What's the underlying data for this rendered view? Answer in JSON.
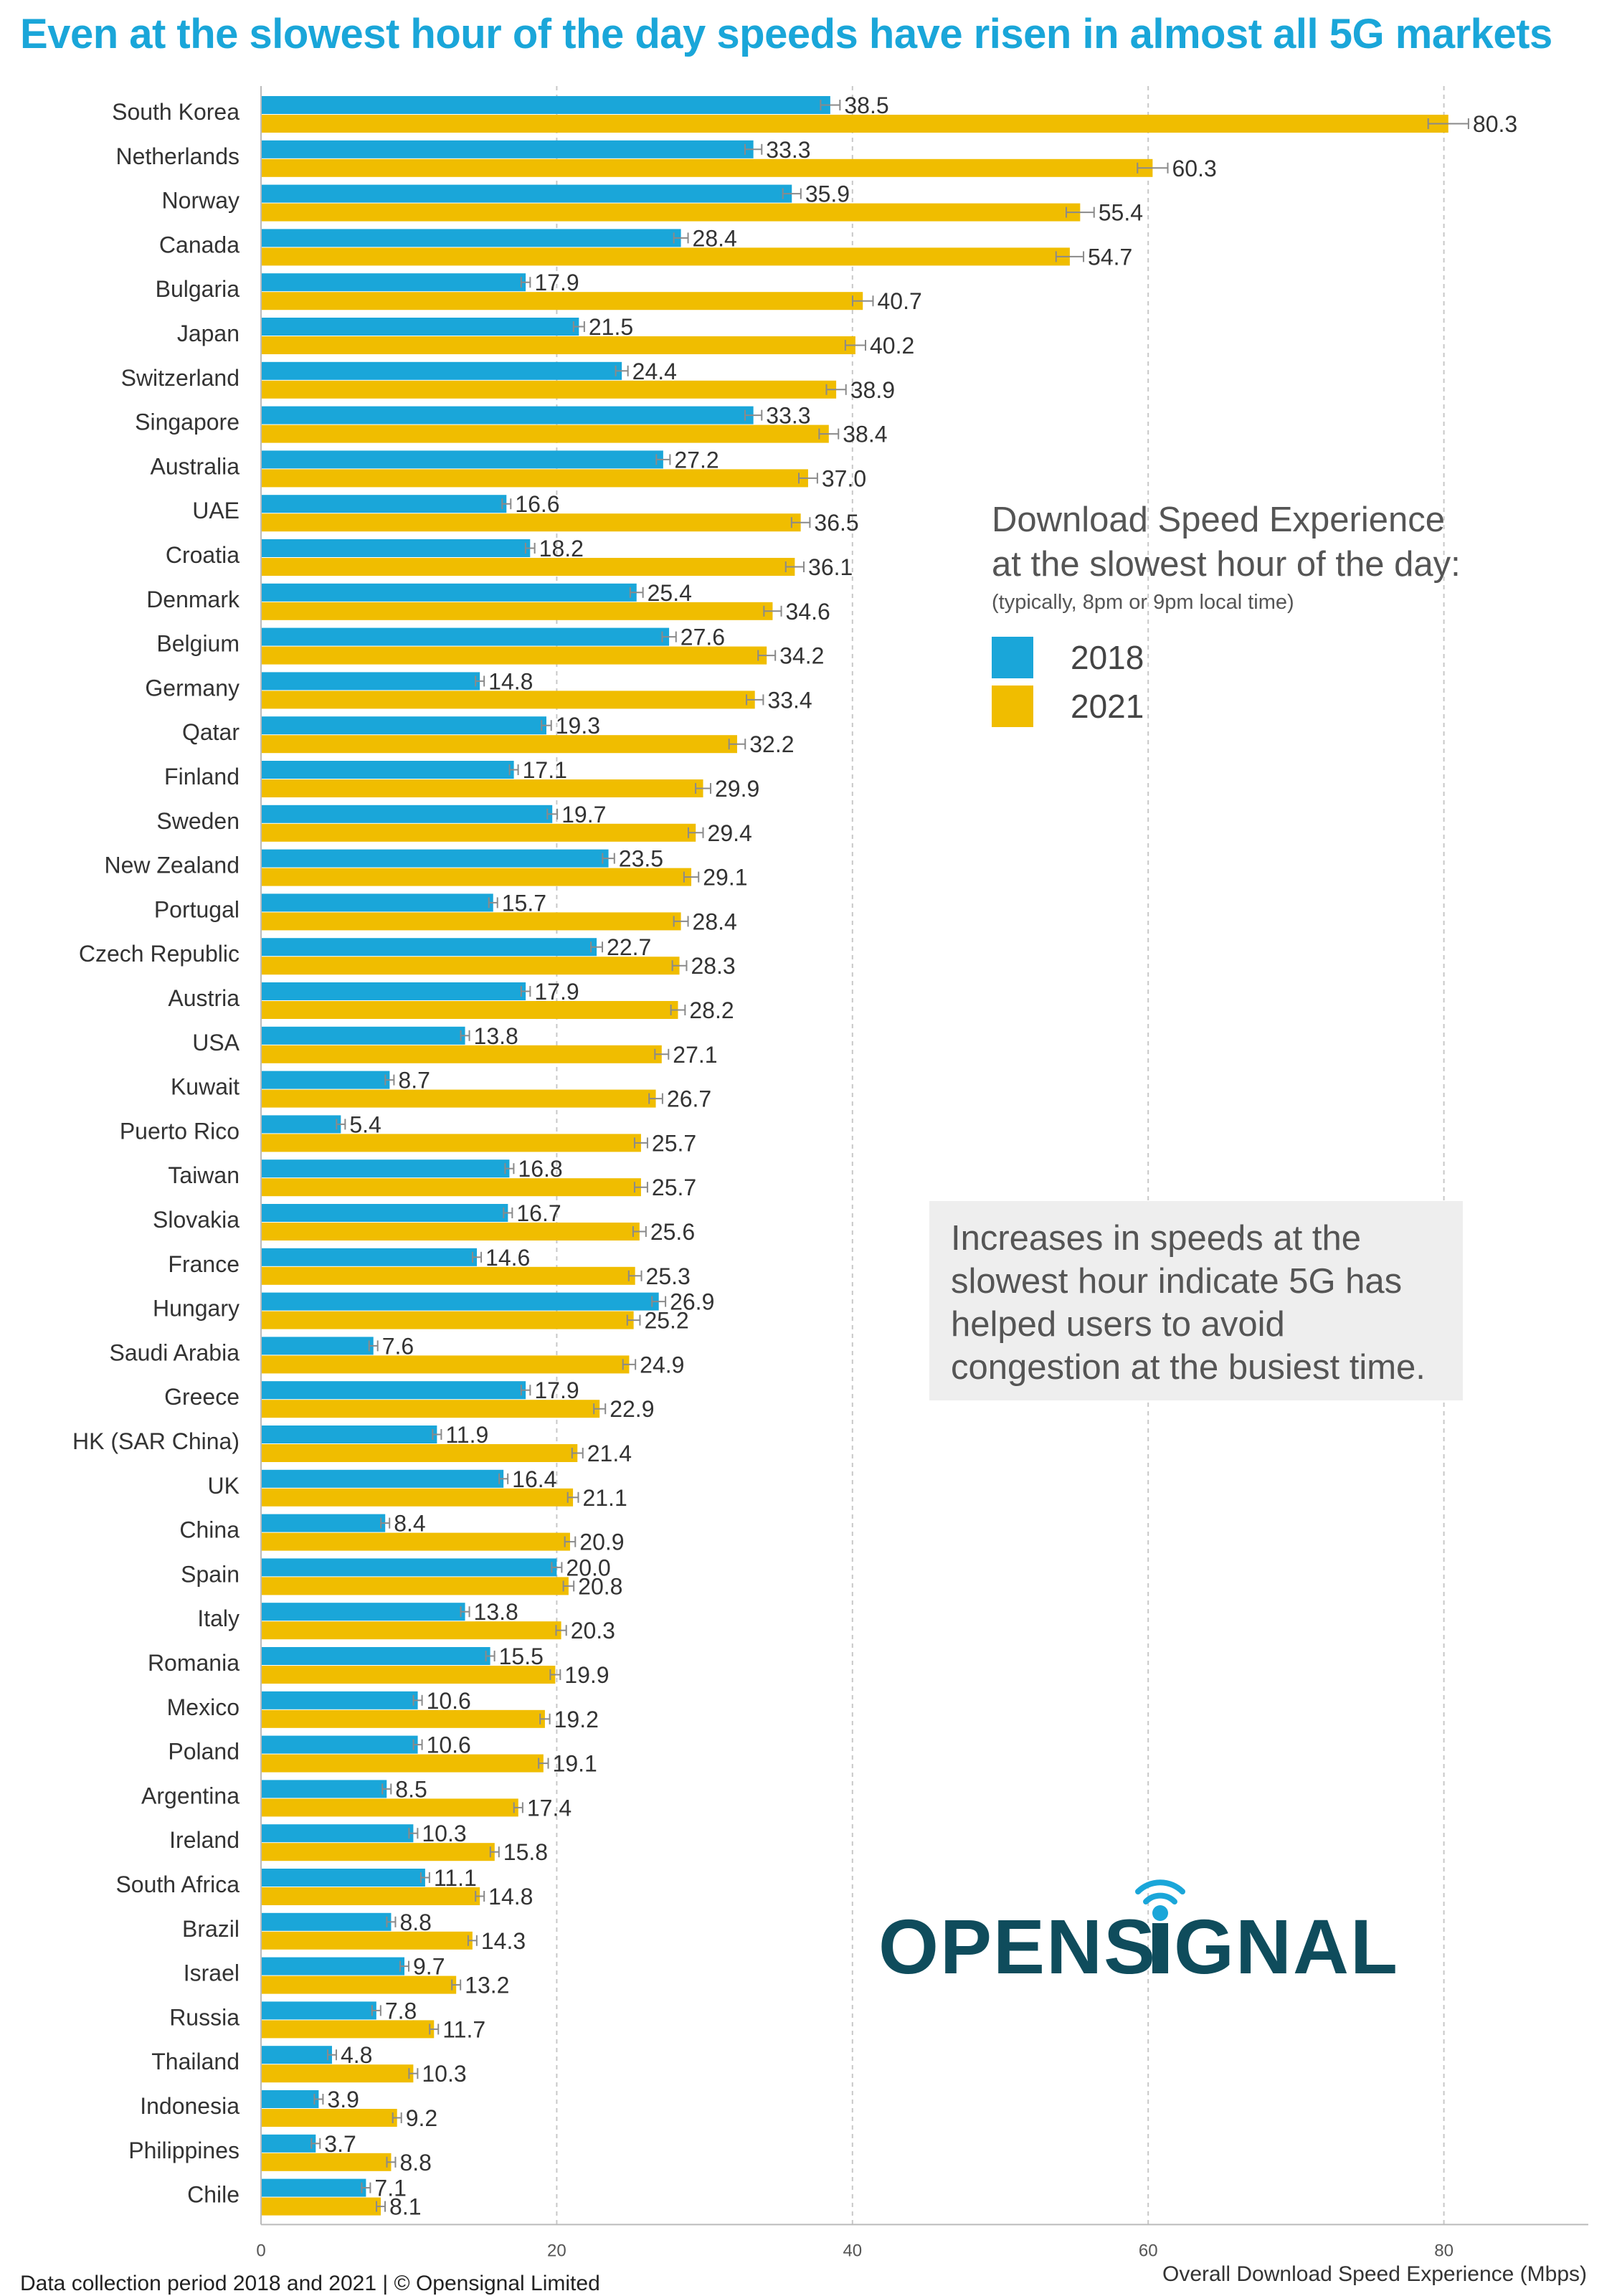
{
  "title": "Even at the slowest hour of the day speeds have risen in almost all 5G markets",
  "legend": {
    "title": "Download Speed Experience\nat the slowest hour of the day:",
    "subtitle": "(typically, 8pm or 9pm local time)",
    "items": [
      {
        "label": "2018",
        "color": "#1aa6d9"
      },
      {
        "label": "2021",
        "color": "#f0bd00"
      }
    ]
  },
  "note": "Increases in speeds at the slowest hour indicate 5G has helped users to avoid congestion at the busiest time.",
  "logo": {
    "text": "OPENSIGNAL",
    "color": "#0f4c5c",
    "signal_color": "#1aa6d9"
  },
  "footer": "Data collection period 2018 and 2021 | © Opensignal Limited",
  "chart_data": {
    "type": "bar",
    "orientation": "horizontal",
    "title": "Even at the slowest hour of the day speeds have risen in almost all 5G markets",
    "xlabel": "Overall Download Speed Experience (Mbps)",
    "ylabel": "",
    "xlim": [
      0,
      90
    ],
    "xticks": [
      0,
      20,
      40,
      60,
      80
    ],
    "grid": true,
    "error_bars": true,
    "categories": [
      "South Korea",
      "Netherlands",
      "Norway",
      "Canada",
      "Bulgaria",
      "Japan",
      "Switzerland",
      "Singapore",
      "Australia",
      "UAE",
      "Croatia",
      "Denmark",
      "Belgium",
      "Germany",
      "Qatar",
      "Finland",
      "Sweden",
      "New Zealand",
      "Portugal",
      "Czech Republic",
      "Austria",
      "USA",
      "Kuwait",
      "Puerto Rico",
      "Taiwan",
      "Slovakia",
      "France",
      "Hungary",
      "Saudi Arabia",
      "Greece",
      "HK (SAR China)",
      "UK",
      "China",
      "Spain",
      "Italy",
      "Romania",
      "Mexico",
      "Poland",
      "Argentina",
      "Ireland",
      "South Africa",
      "Brazil",
      "Israel",
      "Russia",
      "Thailand",
      "Indonesia",
      "Philippines",
      "Chile"
    ],
    "series": [
      {
        "name": "2018",
        "color": "#1aa6d9",
        "values": [
          38.5,
          33.3,
          35.9,
          28.4,
          17.9,
          21.5,
          24.4,
          33.3,
          27.2,
          16.6,
          18.2,
          25.4,
          27.6,
          14.8,
          19.3,
          17.1,
          19.7,
          23.5,
          15.7,
          22.7,
          17.9,
          13.8,
          8.7,
          5.4,
          16.8,
          16.7,
          14.6,
          26.9,
          7.6,
          17.9,
          11.9,
          16.4,
          8.4,
          20.0,
          13.8,
          15.5,
          10.6,
          10.6,
          8.5,
          10.3,
          11.1,
          8.8,
          9.7,
          7.8,
          4.8,
          3.9,
          3.7,
          7.1
        ]
      },
      {
        "name": "2021",
        "color": "#f0bd00",
        "values": [
          80.3,
          60.3,
          55.4,
          54.7,
          40.7,
          40.2,
          38.9,
          38.4,
          37.0,
          36.5,
          36.1,
          34.6,
          34.2,
          33.4,
          32.2,
          29.9,
          29.4,
          29.1,
          28.4,
          28.3,
          28.2,
          27.1,
          26.7,
          25.7,
          25.7,
          25.6,
          25.3,
          25.2,
          24.9,
          22.9,
          21.4,
          21.1,
          20.9,
          20.8,
          20.3,
          19.9,
          19.2,
          19.1,
          17.4,
          15.8,
          14.8,
          14.3,
          13.2,
          11.7,
          10.3,
          9.2,
          8.8,
          8.1
        ]
      }
    ]
  }
}
